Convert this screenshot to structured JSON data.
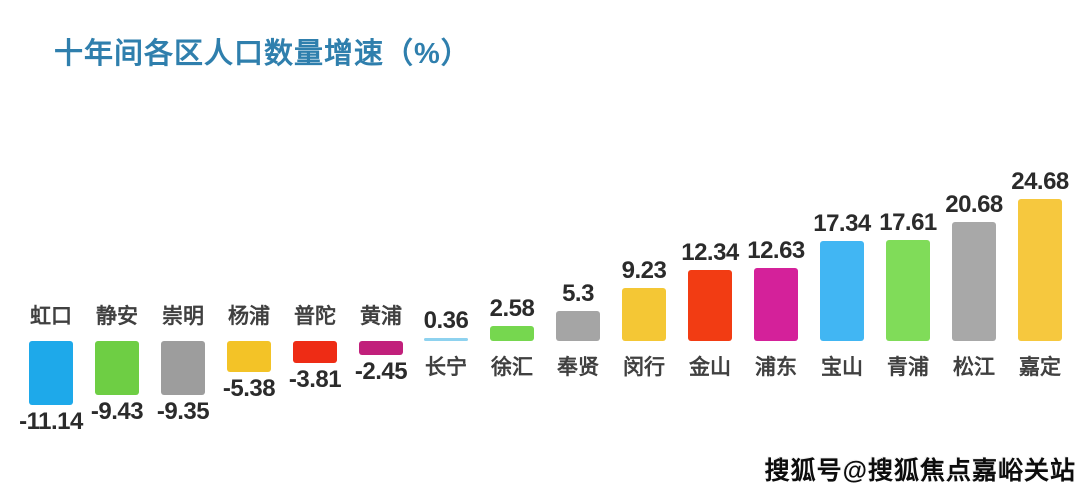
{
  "chart_data": {
    "type": "bar",
    "title": "十年间各区人口数量增速（%）",
    "unit": "%",
    "categories": [
      "虹口",
      "静安",
      "崇明",
      "杨浦",
      "普陀",
      "黄浦",
      "长宁",
      "徐汇",
      "奉贤",
      "闵行",
      "金山",
      "浦东",
      "宝山",
      "青浦",
      "松江",
      "嘉定"
    ],
    "values": [
      -11.14,
      -9.43,
      -9.35,
      -5.38,
      -3.81,
      -2.45,
      0.36,
      2.58,
      5.3,
      9.23,
      12.34,
      12.63,
      17.34,
      17.61,
      20.68,
      24.68
    ],
    "value_labels": [
      "-11.14",
      "-9.43",
      "-9.35",
      "-5.38",
      "-3.81",
      "-2.45",
      "0.36",
      "2.58",
      "5.3",
      "9.23",
      "12.34",
      "12.63",
      "17.34",
      "17.61",
      "20.68",
      "24.68"
    ],
    "bar_colors": [
      "#1ea9ea",
      "#6ece44",
      "#9d9d9d",
      "#f3c327",
      "#ee2c15",
      "#c1207b",
      "#8ed2ef",
      "#76d74f",
      "#a5a5a5",
      "#f4c735",
      "#f23c13",
      "#d4219a",
      "#41b6f3",
      "#80dc59",
      "#a8a8a8",
      "#f6c83e"
    ],
    "ylim": [
      -12,
      26
    ],
    "grid": false,
    "legend": false,
    "axis_line": false,
    "label_placement": "names opposite bar direction at baseline; values at bar tip"
  },
  "watermark": {
    "text": "搜狐号@搜狐焦点嘉峪关站"
  },
  "colors": {
    "title_text": "#2f7fad",
    "value_text": "#2b2b2b",
    "category_text": "#404040",
    "watermark_text": "#0d0d0d",
    "background": "#ffffff"
  }
}
